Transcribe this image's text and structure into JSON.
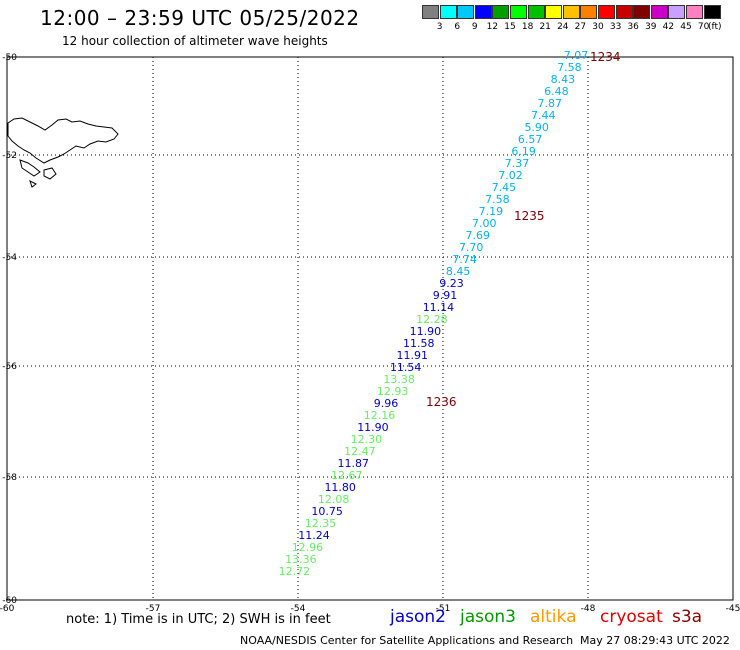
{
  "header": {
    "title": "12:00 – 23:59 UTC 05/25/2022",
    "subtitle": "12 hour collection of altimeter wave heights"
  },
  "legend": {
    "colors": [
      "#808080",
      "#00ffff",
      "#00c8ff",
      "#0000ff",
      "#00a000",
      "#00ff00",
      "#00c000",
      "#ffff00",
      "#ffc000",
      "#ff8000",
      "#ff0000",
      "#c80000",
      "#800000",
      "#c800c8",
      "#c8a0ff",
      "#ff80c0",
      "#000000"
    ],
    "labels": [
      "3",
      "6",
      "9",
      "12",
      "15",
      "18",
      "21",
      "24",
      "27",
      "30",
      "33",
      "36",
      "39",
      "42",
      "45",
      "70"
    ],
    "unit": "(ft)"
  },
  "axes": {
    "lon_ticks": [
      "-60",
      "-57",
      "-54",
      "-51",
      "-48",
      "-45"
    ],
    "lat_ticks": [
      "-50",
      "-52",
      "-54",
      "-56",
      "-58",
      "-60"
    ]
  },
  "passes": [
    "1234",
    "1235",
    "1236"
  ],
  "track_points": [
    {
      "v": "7.07",
      "c": "#00b4f0"
    },
    {
      "v": "7.58",
      "c": "#00b4f0"
    },
    {
      "v": "8.43",
      "c": "#00b4f0"
    },
    {
      "v": "6.48",
      "c": "#00b4f0"
    },
    {
      "v": "7.87",
      "c": "#00b4f0"
    },
    {
      "v": "7.44",
      "c": "#00b4f0"
    },
    {
      "v": "5.90",
      "c": "#00b4f0"
    },
    {
      "v": "6.57",
      "c": "#00b4f0"
    },
    {
      "v": "6.19",
      "c": "#00b4f0"
    },
    {
      "v": "7.37",
      "c": "#00b4f0"
    },
    {
      "v": "7.02",
      "c": "#00b4f0"
    },
    {
      "v": "7.45",
      "c": "#00b4f0"
    },
    {
      "v": "7.58",
      "c": "#00b4f0"
    },
    {
      "v": "7.19",
      "c": "#00b4f0"
    },
    {
      "v": "7.00",
      "c": "#00b4f0"
    },
    {
      "v": "7.69",
      "c": "#00b4f0"
    },
    {
      "v": "7.70",
      "c": "#00b4f0"
    },
    {
      "v": "7.74",
      "c": "#00b4f0"
    },
    {
      "v": "8.45",
      "c": "#00b4f0"
    },
    {
      "v": "9.23",
      "c": "#0000c8"
    },
    {
      "v": "9.91",
      "c": "#0000c8"
    },
    {
      "v": "11.14",
      "c": "#0000c8"
    },
    {
      "v": "12.28",
      "c": "#66ee66"
    },
    {
      "v": "11.90",
      "c": "#0000c8"
    },
    {
      "v": "11.58",
      "c": "#0000c8"
    },
    {
      "v": "11.91",
      "c": "#0000c8"
    },
    {
      "v": "11.54",
      "c": "#0000c8"
    },
    {
      "v": "13.38",
      "c": "#66ee66"
    },
    {
      "v": "12.93",
      "c": "#66ee66"
    },
    {
      "v": "9.96",
      "c": "#0000c8"
    },
    {
      "v": "12.16",
      "c": "#66ee66"
    },
    {
      "v": "11.90",
      "c": "#0000c8"
    },
    {
      "v": "12.30",
      "c": "#66ee66"
    },
    {
      "v": "12.47",
      "c": "#66ee66"
    },
    {
      "v": "11.87",
      "c": "#0000c8"
    },
    {
      "v": "12.67",
      "c": "#66ee66"
    },
    {
      "v": "11.80",
      "c": "#0000c8"
    },
    {
      "v": "12.08",
      "c": "#66ee66"
    },
    {
      "v": "10.75",
      "c": "#0000c8"
    },
    {
      "v": "12.35",
      "c": "#66ee66"
    },
    {
      "v": "11.24",
      "c": "#0000c8"
    },
    {
      "v": "12.96",
      "c": "#66ee66"
    },
    {
      "v": "13.36",
      "c": "#66ee66"
    },
    {
      "v": "12.72",
      "c": "#66ee66"
    }
  ],
  "footer": {
    "note": "note: 1) Time is in UTC; 2) SWH is in feet",
    "satellites": [
      {
        "name": "jason2",
        "color": "#0000cc"
      },
      {
        "name": "jason3",
        "color": "#009900"
      },
      {
        "name": "altika",
        "color": "#ff9900"
      },
      {
        "name": "cryosat",
        "color": "#dd0000"
      },
      {
        "name": "s3a",
        "color": "#880000"
      }
    ],
    "credit": "NOAA/NESDIS Center for Satellite Applications and Research",
    "timestamp": "May 27 08:29:43 UTC 2022"
  }
}
